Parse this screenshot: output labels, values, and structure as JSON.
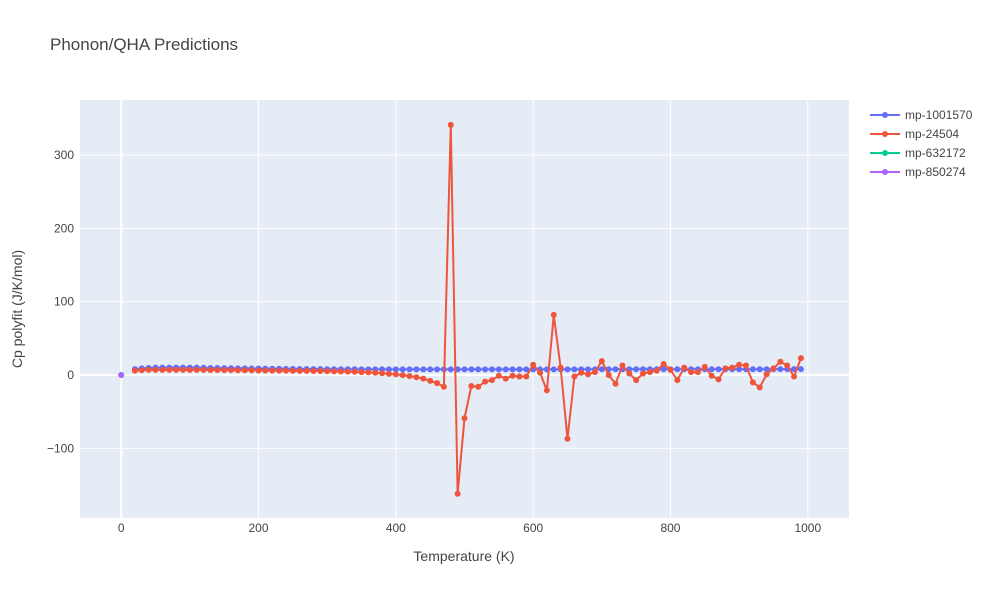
{
  "chart_data": {
    "type": "line",
    "title": "Phonon/QHA Predictions",
    "xlabel": "Temperature (K)",
    "ylabel": "Cp polyfit (J/K/mol)",
    "xlim": [
      -60,
      1060
    ],
    "ylim": [
      -195,
      375
    ],
    "xticks": [
      0,
      200,
      400,
      600,
      800,
      1000
    ],
    "xtick_labels": [
      "0",
      "200",
      "400",
      "600",
      "800",
      "1000"
    ],
    "yticks": [
      -100,
      0,
      100,
      200,
      300
    ],
    "ytick_labels": [
      "−100",
      "0",
      "100",
      "200",
      "300"
    ],
    "grid": true,
    "legend_position": "top-right",
    "series": [
      {
        "name": "mp-1001570",
        "color": "#636efa",
        "x": [
          20,
          30,
          40,
          50,
          60,
          70,
          80,
          90,
          100,
          110,
          120,
          130,
          140,
          150,
          160,
          170,
          180,
          190,
          200,
          210,
          220,
          230,
          240,
          250,
          260,
          270,
          280,
          290,
          300,
          310,
          320,
          330,
          340,
          350,
          360,
          370,
          380,
          390,
          400,
          410,
          420,
          430,
          440,
          450,
          460,
          470,
          480,
          490,
          500,
          510,
          520,
          530,
          540,
          550,
          560,
          570,
          580,
          590,
          600,
          610,
          620,
          630,
          640,
          650,
          660,
          670,
          680,
          690,
          700,
          710,
          720,
          730,
          740,
          750,
          760,
          770,
          780,
          790,
          800,
          810,
          820,
          830,
          840,
          850,
          860,
          870,
          880,
          890,
          900,
          910,
          920,
          930,
          940,
          950,
          960,
          970,
          980,
          990
        ],
        "y": [
          8,
          9,
          9.5,
          10,
          10,
          10,
          10,
          10,
          10,
          10,
          9.8,
          9.6,
          9.5,
          9.3,
          9.2,
          9.1,
          9,
          8.9,
          8.8,
          8.7,
          8.6,
          8.5,
          8.4,
          8.3,
          8.2,
          8.1,
          8,
          8,
          7.9,
          7.9,
          7.8,
          7.8,
          7.8,
          7.7,
          7.7,
          7.7,
          7.7,
          7.7,
          7.7,
          7.7,
          7.7,
          7.7,
          7.7,
          7.7,
          7.7,
          7.7,
          7.7,
          7.7,
          7.7,
          7.7,
          7.7,
          7.7,
          7.7,
          7.7,
          7.7,
          7.7,
          7.7,
          7.7,
          7.7,
          7.7,
          7.7,
          7.7,
          7.7,
          7.7,
          7.7,
          7.7,
          7.7,
          7.7,
          7.8,
          7.8,
          7.8,
          7.8,
          7.8,
          7.8,
          7.8,
          7.8,
          7.8,
          7.8,
          7.8,
          7.8,
          7.8,
          7.8,
          7.8,
          7.8,
          7.9,
          7.9,
          7.9,
          7.9,
          7.9,
          7.9,
          7.9,
          7.9,
          7.9,
          7.9,
          8,
          8,
          8,
          8
        ]
      },
      {
        "name": "mp-24504",
        "color": "#ef553b",
        "x": [
          20,
          30,
          40,
          50,
          60,
          70,
          80,
          90,
          100,
          110,
          120,
          130,
          140,
          150,
          160,
          170,
          180,
          190,
          200,
          210,
          220,
          230,
          240,
          250,
          260,
          270,
          280,
          290,
          300,
          310,
          320,
          330,
          340,
          350,
          360,
          370,
          380,
          390,
          400,
          410,
          420,
          430,
          440,
          450,
          460,
          470,
          480,
          490,
          500,
          510,
          520,
          530,
          540,
          550,
          560,
          570,
          580,
          590,
          600,
          610,
          620,
          630,
          640,
          650,
          660,
          670,
          680,
          690,
          700,
          710,
          720,
          730,
          740,
          750,
          760,
          770,
          780,
          790,
          800,
          810,
          820,
          830,
          840,
          850,
          860,
          870,
          880,
          890,
          900,
          910,
          920,
          930,
          940,
          950,
          960,
          970,
          980,
          990
        ],
        "y": [
          6,
          6.5,
          7,
          7,
          7,
          7,
          7,
          7,
          7,
          7,
          7,
          6.8,
          6.8,
          6.6,
          6.6,
          6.5,
          6.4,
          6.3,
          6.2,
          6.1,
          6,
          6,
          5.9,
          5.8,
          5.7,
          5.6,
          5.5,
          5.4,
          5.2,
          5,
          4.8,
          4.6,
          4.4,
          4,
          3.6,
          3,
          2.4,
          1.6,
          0.8,
          -0.2,
          -1.5,
          -3,
          -5,
          -8,
          -11,
          -16,
          341,
          -162,
          -59,
          -15,
          -16,
          -9,
          -7,
          -1,
          -5,
          -1,
          -2,
          -2,
          14,
          3,
          -21,
          82,
          10,
          -87,
          -2,
          3,
          1,
          4,
          19,
          0,
          -12,
          13,
          2,
          -7,
          2,
          4,
          6,
          15,
          7,
          -7,
          10,
          4,
          4,
          11,
          -1,
          -6,
          9,
          10,
          14,
          13,
          -10,
          -17,
          1,
          9,
          18,
          13,
          -2,
          23
        ]
      },
      {
        "name": "mp-632172",
        "color": "#00cc96",
        "x": [
          0
        ],
        "y": [
          0
        ]
      },
      {
        "name": "mp-850274",
        "color": "#ab63fa",
        "x": [
          0
        ],
        "y": [
          0
        ]
      }
    ]
  }
}
